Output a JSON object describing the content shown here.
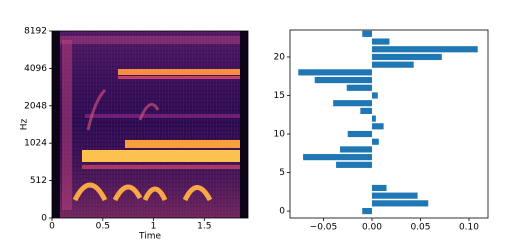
{
  "chart_data": [
    {
      "type": "spectrogram",
      "xlabel": "Time",
      "ylabel": "Hz",
      "xlim": [
        0,
        1.93
      ],
      "xticks": [
        0,
        0.5,
        1,
        1.5
      ],
      "ylim": [
        0,
        8192
      ],
      "yticks": [
        0,
        512,
        1024,
        2048,
        4096,
        8192
      ],
      "yscale": "symlog"
    },
    {
      "type": "barh",
      "color": "#1f77b4",
      "y": [
        0,
        1,
        2,
        3,
        4,
        5,
        6,
        7,
        8,
        9,
        10,
        11,
        12,
        13,
        14,
        15,
        16,
        17,
        18,
        19,
        20,
        21,
        22,
        23
      ],
      "values": [
        -0.01,
        0.058,
        0.047,
        0.015,
        0,
        0,
        -0.037,
        -0.071,
        -0.033,
        0.007,
        -0.025,
        0.012,
        0.004,
        -0.012,
        -0.04,
        0.006,
        -0.026,
        -0.059,
        -0.076,
        0.043,
        0.072,
        0.109,
        0.018,
        -0.01
      ],
      "xlim": [
        -0.0845,
        0.1196
      ],
      "xticks": [
        {
          "value": -0.05,
          "label": "−0.05"
        },
        {
          "value": 0,
          "label": "0.00"
        },
        {
          "value": 0.05,
          "label": "0.05"
        },
        {
          "value": 0.1,
          "label": "0.10"
        }
      ],
      "ylim": [
        -0.9,
        23.5
      ],
      "yticks": [
        0,
        5,
        10,
        15,
        20
      ]
    }
  ]
}
